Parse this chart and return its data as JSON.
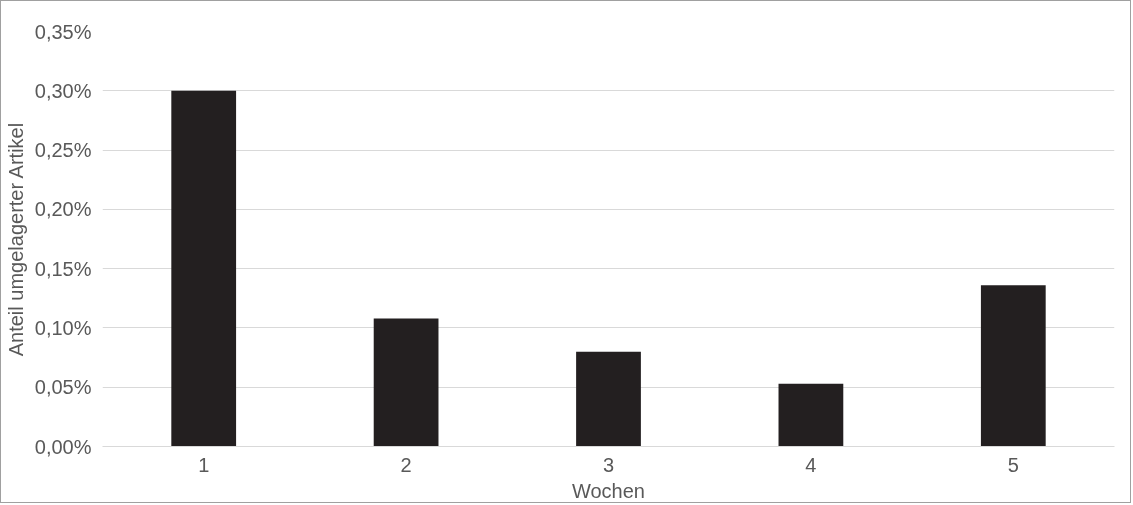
{
  "chart_data": {
    "type": "bar",
    "xlabel": "Wochen",
    "ylabel": "Anteil umgelagerter Artikel",
    "categories": [
      "1",
      "2",
      "3",
      "4",
      "5"
    ],
    "series": [
      {
        "color": "#231f20",
        "values": [
          0.3,
          0.108,
          0.08,
          0.053,
          0.136
        ]
      }
    ],
    "ylim": [
      0,
      0.35
    ],
    "yticks": [
      {
        "value": 0,
        "label": "0,00%"
      },
      {
        "value": 0.05,
        "label": "0,05%"
      },
      {
        "value": 0.1,
        "label": "0,10%"
      },
      {
        "value": 0.15,
        "label": "0,15%"
      },
      {
        "value": 0.2,
        "label": "0,20%"
      },
      {
        "value": 0.25,
        "label": "0,25%"
      },
      {
        "value": 0.3,
        "label": "0,30%"
      },
      {
        "value": 0.35,
        "label": "0,35%"
      }
    ],
    "grid": "y"
  }
}
